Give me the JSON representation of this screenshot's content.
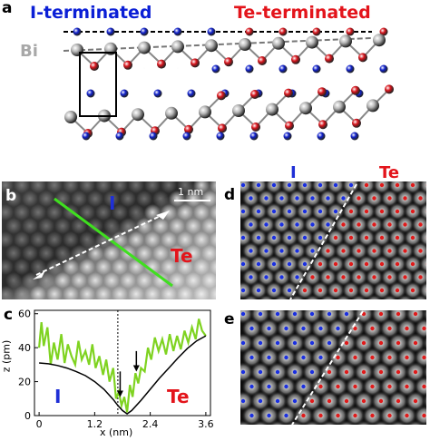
{
  "panel_a": {
    "label": "a",
    "left_term": "I-terminated",
    "right_term": "Te-terminated",
    "bi_label": "Bi",
    "colors": {
      "iodine": "#1021cc",
      "tellurium": "#d8141b",
      "bismuth": "#b7b7b7"
    }
  },
  "panel_b": {
    "label": "b",
    "scalebar": "1 nm",
    "I": "I",
    "Te": "Te"
  },
  "panel_c": {
    "label": "c",
    "I": "I",
    "Te": "Te",
    "xlabel": "x (nm)",
    "ylabel": "z (pm)"
  },
  "panel_d": {
    "label": "d",
    "I": "I",
    "Te": "Te"
  },
  "panel_e": {
    "label": "e"
  },
  "chart_data": {
    "type": "line",
    "xlabel": "x (nm)",
    "ylabel": "z (pm)",
    "xlim": [
      -0.1,
      3.7
    ],
    "ylim": [
      0,
      62
    ],
    "xticks": [
      "0",
      "1.2",
      "2.4",
      "3.6"
    ],
    "yticks": [
      "0",
      "20",
      "40",
      "60"
    ],
    "boundary_x": 1.7,
    "series": [
      {
        "color": "#7fd321",
        "x": [
          0.0,
          0.05,
          0.1,
          0.18,
          0.25,
          0.32,
          0.4,
          0.48,
          0.55,
          0.62,
          0.7,
          0.78,
          0.85,
          0.92,
          1.0,
          1.08,
          1.15,
          1.22,
          1.3,
          1.38,
          1.45,
          1.52,
          1.6,
          1.66,
          1.72,
          1.78,
          1.84,
          1.9,
          1.96,
          2.02,
          2.08,
          2.14,
          2.2,
          2.28,
          2.35,
          2.42,
          2.5,
          2.58,
          2.66,
          2.74,
          2.82,
          2.9,
          2.98,
          3.06,
          3.14,
          3.22,
          3.3,
          3.38,
          3.45,
          3.52,
          3.6
        ],
        "y": [
          40,
          55,
          41,
          52,
          30,
          43,
          33,
          48,
          31,
          42,
          35,
          30,
          44,
          33,
          38,
          30,
          42,
          28,
          35,
          24,
          33,
          20,
          28,
          10,
          14,
          6,
          11,
          2,
          18,
          11,
          25,
          19,
          28,
          26,
          40,
          33,
          46,
          38,
          45,
          36,
          48,
          38,
          47,
          39,
          50,
          43,
          52,
          45,
          57,
          50,
          47
        ]
      },
      {
        "color": "#000000",
        "x": [
          0.0,
          0.2,
          0.4,
          0.6,
          0.8,
          1.0,
          1.2,
          1.4,
          1.6,
          1.7,
          1.8,
          1.9,
          2.0,
          2.2,
          2.4,
          2.6,
          2.8,
          3.0,
          3.2,
          3.4,
          3.6
        ],
        "y": [
          31,
          30.5,
          29.5,
          28,
          26,
          23.5,
          20,
          15.5,
          9.5,
          6,
          3,
          1,
          3,
          9,
          15.5,
          22,
          28,
          34,
          39.5,
          44,
          47
        ]
      }
    ],
    "arrows_x": [
      1.75,
      2.1
    ]
  }
}
